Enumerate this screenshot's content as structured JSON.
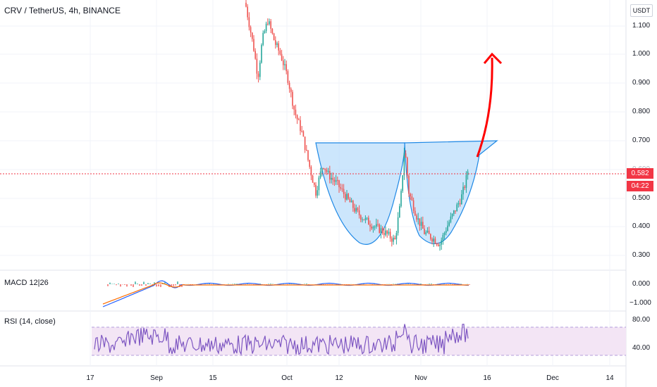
{
  "header": {
    "title": "CRV / TetherUS, 4h, BINANCE",
    "currency": "USDT"
  },
  "price_axis": [
    "1.100",
    "1.000",
    "0.900",
    "0.800",
    "0.700",
    "0.600",
    "0.500",
    "0.400",
    "0.300"
  ],
  "last_price": {
    "value": "0.582",
    "countdown": "04:22",
    "color": "#f23645"
  },
  "macd": {
    "label": "MACD 12|26",
    "axis": [
      "0.000",
      "−1.000"
    ]
  },
  "rsi": {
    "label": "RSI (14, close)",
    "axis": [
      "80.00",
      "40.00"
    ],
    "color": "#7e57c2",
    "band_color": "#f3e5f5"
  },
  "time_axis": [
    "17",
    "Sep",
    "15",
    "Oct",
    "12",
    "Nov",
    "16",
    "Dec",
    "14"
  ],
  "colors": {
    "up": "#26a69a",
    "down": "#ef5350",
    "cup_fill": "#bbdefb",
    "cup_stroke": "#1e88e5",
    "arrow": "#ff0000"
  }
}
